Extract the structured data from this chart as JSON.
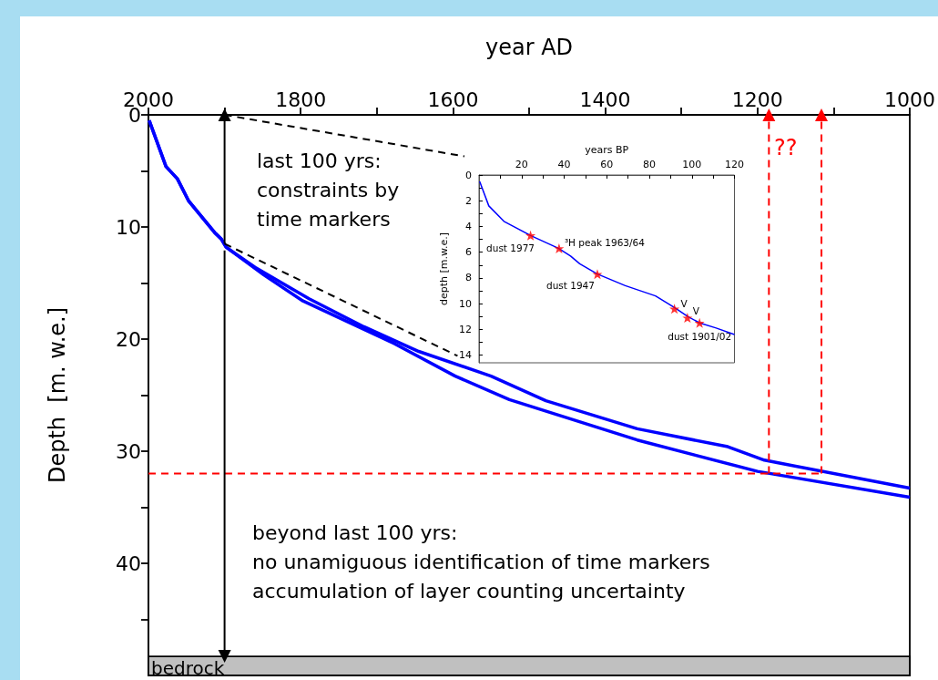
{
  "chart_data": [
    {
      "type": "line",
      "xlabel": "year AD",
      "ylabel": "Depth  [m. w.e.]",
      "xlim": [
        2000,
        1000
      ],
      "xticks": [
        2000,
        {
          "value": 1900,
          "label": null
        },
        1800,
        {
          "value": 1700,
          "label": null
        },
        1600,
        {
          "value": 1500,
          "label": null
        },
        1400,
        {
          "value": 1300,
          "label": null
        },
        1200,
        {
          "value": 1100,
          "label": null
        },
        1000
      ],
      "ylim": [
        50,
        0
      ],
      "yticks": [
        0,
        {
          "value": 5,
          "label": null
        },
        10,
        {
          "value": 15,
          "label": null
        },
        20,
        {
          "value": 25,
          "label": null
        },
        30,
        {
          "value": 35,
          "label": null
        },
        40,
        {
          "value": 45,
          "label": null
        }
      ],
      "series": [
        {
          "color": "#0000ff",
          "x": [
            1999,
            1977,
            1962,
            1947,
            1913,
            1904,
            1898,
            1860,
            1789,
            1717,
            1645,
            1550,
            1478,
            1358,
            1239,
            1191,
            1000
          ],
          "values": [
            0.5,
            4.6,
            5.7,
            7.7,
            10.5,
            11.1,
            11.8,
            13.6,
            16.4,
            18.9,
            21.1,
            23.3,
            25.5,
            28.0,
            29.6,
            30.8,
            33.3
          ]
        },
        {
          "color": "#0000ff",
          "x": [
            1999,
            1977,
            1962,
            1947,
            1913,
            1904,
            1898,
            1848,
            1797,
            1677,
            1597,
            1526,
            1358,
            1200,
            1000
          ],
          "values": [
            0.5,
            4.6,
            5.7,
            7.7,
            10.5,
            11.1,
            11.8,
            14.3,
            16.6,
            20.4,
            23.3,
            25.4,
            29.0,
            31.8,
            34.1
          ]
        },
        {
          "color": "#ff0000",
          "line_style": "dashed",
          "x": [
            2000,
            1116
          ],
          "values": [
            32,
            32
          ]
        },
        {
          "color": "#ff0000",
          "line_style": "dashed",
          "marker": "triangle",
          "x": [
            1185,
            1185
          ],
          "values": [
            32,
            0
          ]
        },
        {
          "color": "#ff0000",
          "line_style": "dashed",
          "marker": "triangle",
          "x": [
            1116,
            1116
          ],
          "values": [
            32,
            0
          ]
        },
        {
          "color": "#000000",
          "marker": "triangle",
          "x": [
            1900,
            1900
          ],
          "values": [
            11.5,
            0
          ]
        },
        {
          "color": "#000000",
          "marker": "triangle",
          "x": [
            1900,
            1900
          ],
          "values": [
            12.1,
            48.3
          ]
        },
        {
          "color": "#000000",
          "line_style": "dashed",
          "x": [
            1900,
            1585
          ],
          "values": [
            0,
            3.7
          ]
        },
        {
          "color": "#000000",
          "line_style": "dashed",
          "x": [
            1900,
            1594
          ],
          "values": [
            11.5,
            21.5
          ]
        }
      ],
      "bands": [
        {
          "axis": "y",
          "from": 48.3,
          "to": 50,
          "label": "bedrock",
          "color": "#c0c0c0"
        }
      ],
      "annotations": [
        "last 100 yrs:\nconstraints by\ntime markers",
        "beyond last 100 yrs:\nno unamiguous identification of time markers\naccumulation of layer counting uncertainty",
        "??"
      ]
    },
    {
      "type": "line",
      "xlabel": "years BP",
      "ylabel": "depth [m.w.e.]",
      "xlim": [
        0,
        120
      ],
      "xticks": [
        {
          "value": 10,
          "label": null
        },
        20,
        {
          "value": 30,
          "label": null
        },
        40,
        {
          "value": 50,
          "label": null
        },
        60,
        {
          "value": 70,
          "label": null
        },
        80,
        {
          "value": 90,
          "label": null
        },
        100,
        {
          "value": 110,
          "label": null
        },
        120
      ],
      "ylim": [
        14.6,
        0
      ],
      "yticks": [
        0,
        {
          "value": 1,
          "label": null
        },
        2,
        {
          "value": 3,
          "label": null
        },
        4,
        {
          "value": 5,
          "label": null
        },
        6,
        {
          "value": 7,
          "label": null
        },
        8,
        {
          "value": 9,
          "label": null
        },
        10,
        {
          "value": 11,
          "label": null
        },
        12,
        {
          "value": 13,
          "label": null
        },
        14
      ],
      "series": [
        {
          "color": "#0000ff",
          "x": [
            0.3,
            4.6,
            11.7,
            24.2,
            37.3,
            43,
            47.3,
            55.6,
            68.7,
            82.9,
            91.8,
            98,
            103.6,
            111.4,
            120
          ],
          "values": [
            0.5,
            2.4,
            3.6,
            4.7,
            5.7,
            6.3,
            6.9,
            7.7,
            8.6,
            9.4,
            10.3,
            11.0,
            11.5,
            11.9,
            12.4
          ]
        },
        {
          "type": "scatter",
          "marker": "star",
          "color": "#ff0000",
          "x": [
            24.2,
            37.6,
            55.6,
            91.8,
            97.9,
            103.6
          ],
          "values": [
            4.7,
            5.7,
            7.7,
            10.4,
            11.1,
            11.5
          ]
        }
      ],
      "annotations": [
        {
          "text": "dust 1977",
          "x": 24.2,
          "y": 4.7
        },
        {
          "text": "³H peak 1963/64",
          "x": 37.6,
          "y": 5.7
        },
        {
          "text": "dust 1947",
          "x": 55.6,
          "y": 7.7
        },
        {
          "text": "V",
          "x": 91.8,
          "y": 10.4
        },
        {
          "text": "V",
          "x": 97.9,
          "y": 11.1
        },
        {
          "text": "dust 1901/02",
          "x": 103.6,
          "y": 11.5
        }
      ]
    }
  ]
}
